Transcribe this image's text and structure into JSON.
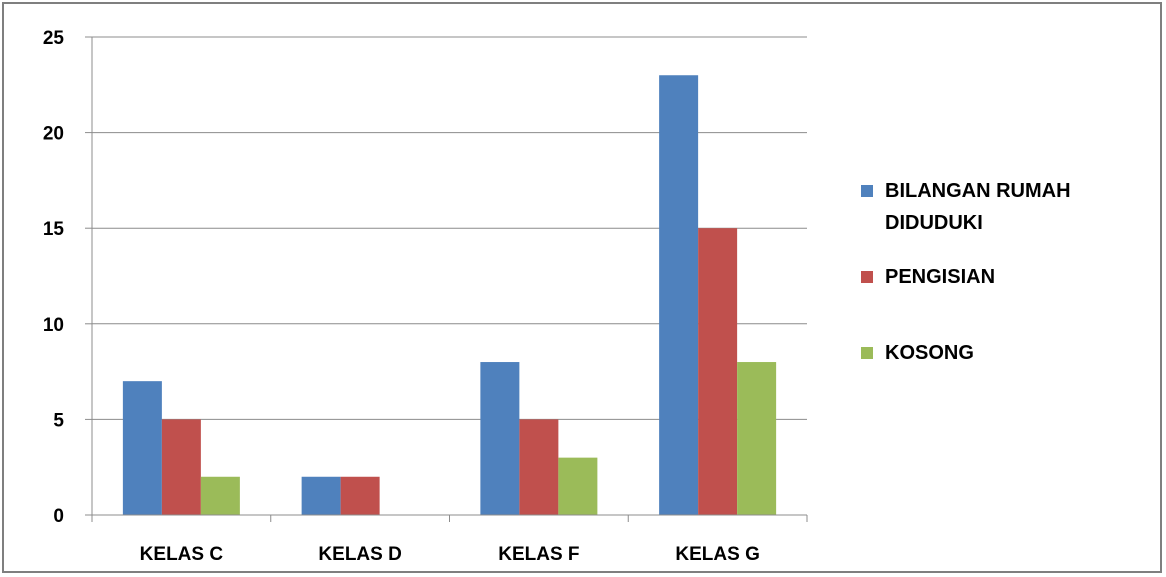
{
  "chart_data": {
    "type": "bar",
    "categories": [
      "KELAS C",
      "KELAS D",
      "KELAS F",
      "KELAS G"
    ],
    "series": [
      {
        "name": "BILANGAN RUMAH DIDUDUKI",
        "values": [
          7,
          2,
          8,
          23
        ],
        "color": "#4f81bd"
      },
      {
        "name": "PENGISIAN",
        "values": [
          5,
          2,
          5,
          15
        ],
        "color": "#c0504d"
      },
      {
        "name": "KOSONG",
        "values": [
          2,
          0,
          3,
          8
        ],
        "color": "#9bbb59"
      }
    ],
    "legend_lines": [
      [
        "BILANGAN RUMAH",
        "DIDUDUKI"
      ],
      [
        "PENGISIAN"
      ],
      [
        "KOSONG"
      ]
    ],
    "yticks": [
      "0",
      "5",
      "10",
      "15",
      "20",
      "25"
    ],
    "ylim": [
      0,
      25
    ],
    "grid": true,
    "legend_position": "right"
  }
}
